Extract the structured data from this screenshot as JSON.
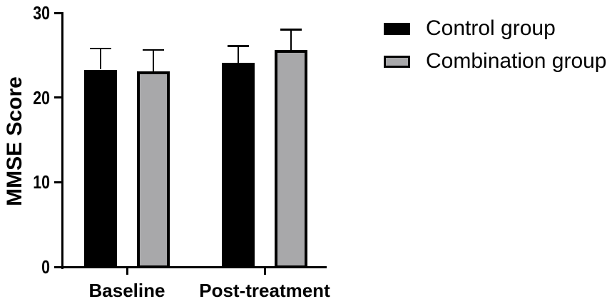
{
  "chart_data": {
    "type": "bar",
    "title": "",
    "xlabel": "",
    "ylabel": "MMSE Score",
    "categories": [
      "Baseline",
      "Post-treatment"
    ],
    "series": [
      {
        "name": "Control group",
        "values": [
          23.3,
          24.1
        ],
        "errors": [
          2.5,
          2.0
        ],
        "fill": "#000000",
        "outline": "#000000"
      },
      {
        "name": "Combination group",
        "values": [
          23.1,
          25.6
        ],
        "errors": [
          2.5,
          2.4
        ],
        "fill": "#a8a8aa",
        "outline": "#000000"
      }
    ],
    "ylim": [
      0,
      30
    ],
    "yticks": [
      0,
      10,
      20,
      30
    ],
    "error_bars": "upper whiskers with caps",
    "grid": false,
    "legend_position": "right-top",
    "background": "#ffffff",
    "axis_color": "#000000"
  }
}
